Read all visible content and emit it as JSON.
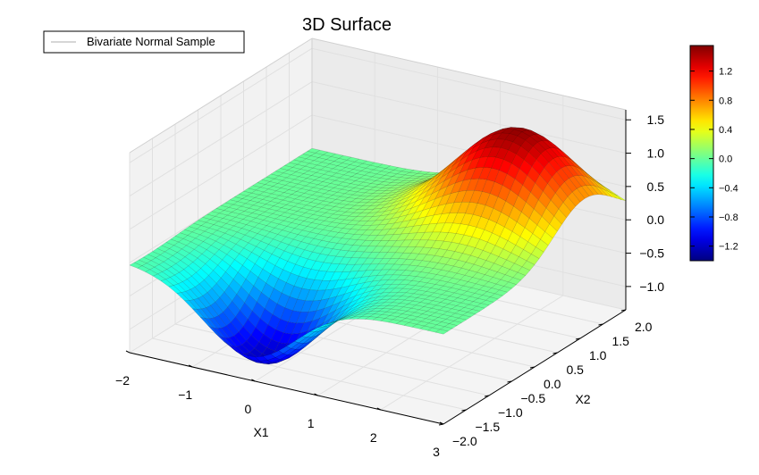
{
  "chart_data": {
    "type": "surface",
    "title": "3D Surface",
    "xlabel": "X1",
    "ylabel": "X2",
    "zlabel": "",
    "legend": {
      "label": "Bivariate Normal Sample",
      "placement": "top-left"
    },
    "x_ticks": [
      "−2",
      "−1",
      "0",
      "1",
      "2",
      "3"
    ],
    "y_ticks": [
      "−2.0",
      "−1.5",
      "−1.0",
      "−0.5",
      "0.0",
      "0.5",
      "1.0",
      "1.5",
      "2.0"
    ],
    "z_ticks": [
      "−1.0",
      "−0.5",
      "0.0",
      "0.5",
      "1.0",
      "1.5"
    ],
    "xlim": [
      -2,
      3
    ],
    "ylim": [
      -2,
      2
    ],
    "zlim": [
      -1.35,
      1.65
    ],
    "colormap": "jet",
    "colorbar": {
      "range": [
        -1.4,
        1.55
      ],
      "ticks": [
        "−1.2",
        "−0.8",
        "−0.4",
        "0.0",
        "0.4",
        "0.8",
        "1.2"
      ]
    },
    "surface": {
      "function": "difference of two Gaussian bumps",
      "peak": {
        "x1": 1.9,
        "x2": 1.1,
        "z": 1.5
      },
      "trough": {
        "x1": -0.1,
        "x2": -1.6,
        "z": -1.25
      },
      "grid_points": 40
    },
    "grid": true
  }
}
